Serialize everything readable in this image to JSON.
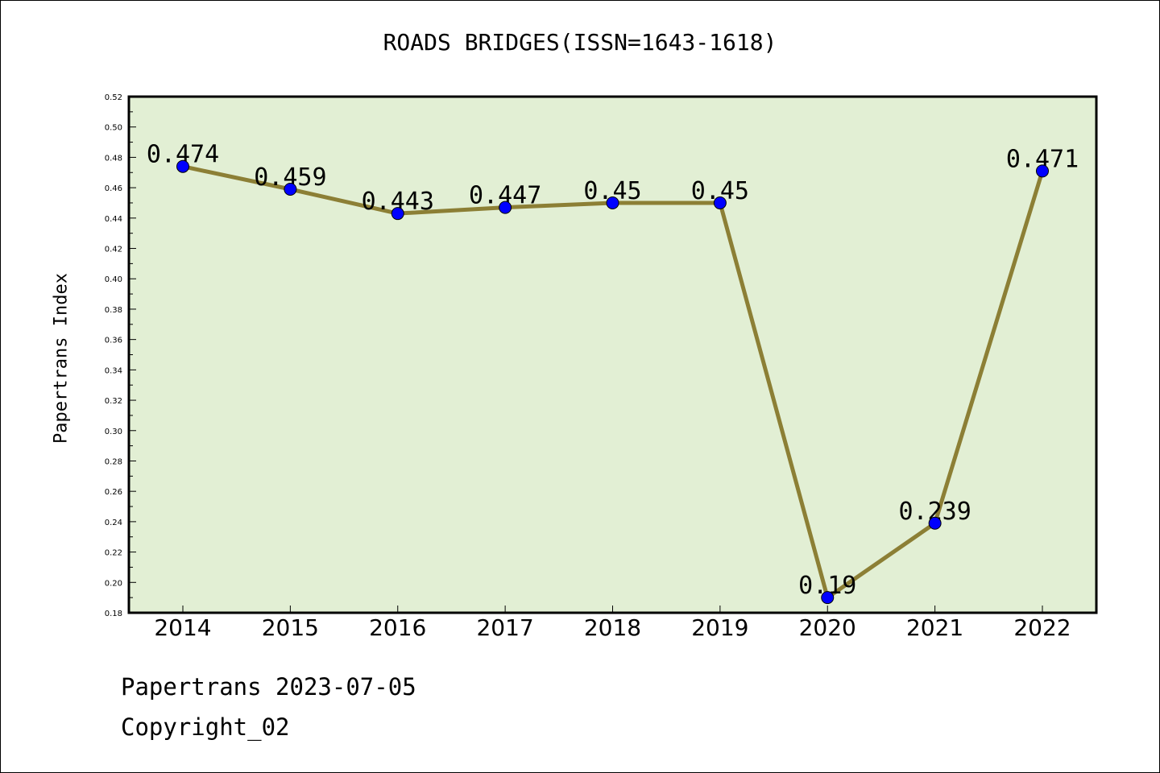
{
  "chart_data": {
    "type": "line",
    "title": "ROADS BRIDGES(ISSN=1643-1618)",
    "xlabel": "",
    "ylabel": "Papertrans Index",
    "categories": [
      "2014",
      "2015",
      "2016",
      "2017",
      "2018",
      "2019",
      "2020",
      "2021",
      "2022"
    ],
    "series": [
      {
        "values": [
          0.474,
          0.459,
          0.443,
          0.447,
          0.45,
          0.45,
          0.19,
          0.239,
          0.471
        ],
        "data_labels": [
          "0.474",
          "0.459",
          "0.443",
          "0.447",
          "0.45",
          "0.45",
          "0.19",
          "0.239",
          "0.471"
        ]
      }
    ],
    "ylim": [
      0.18,
      0.52
    ],
    "yticks": [
      "0.18",
      "0.20",
      "0.22",
      "0.24",
      "0.26",
      "0.28",
      "0.30",
      "0.32",
      "0.34",
      "0.36",
      "0.38",
      "0.40",
      "0.42",
      "0.44",
      "0.46",
      "0.48",
      "0.50",
      "0.52"
    ],
    "grid": false,
    "colors": {
      "plot_background": "#e2efd4",
      "line": "#8c7f35",
      "marker": "#0000ff"
    }
  },
  "footer": {
    "source": "Papertrans 2023-07-05",
    "copyright": "Copyright_02"
  }
}
